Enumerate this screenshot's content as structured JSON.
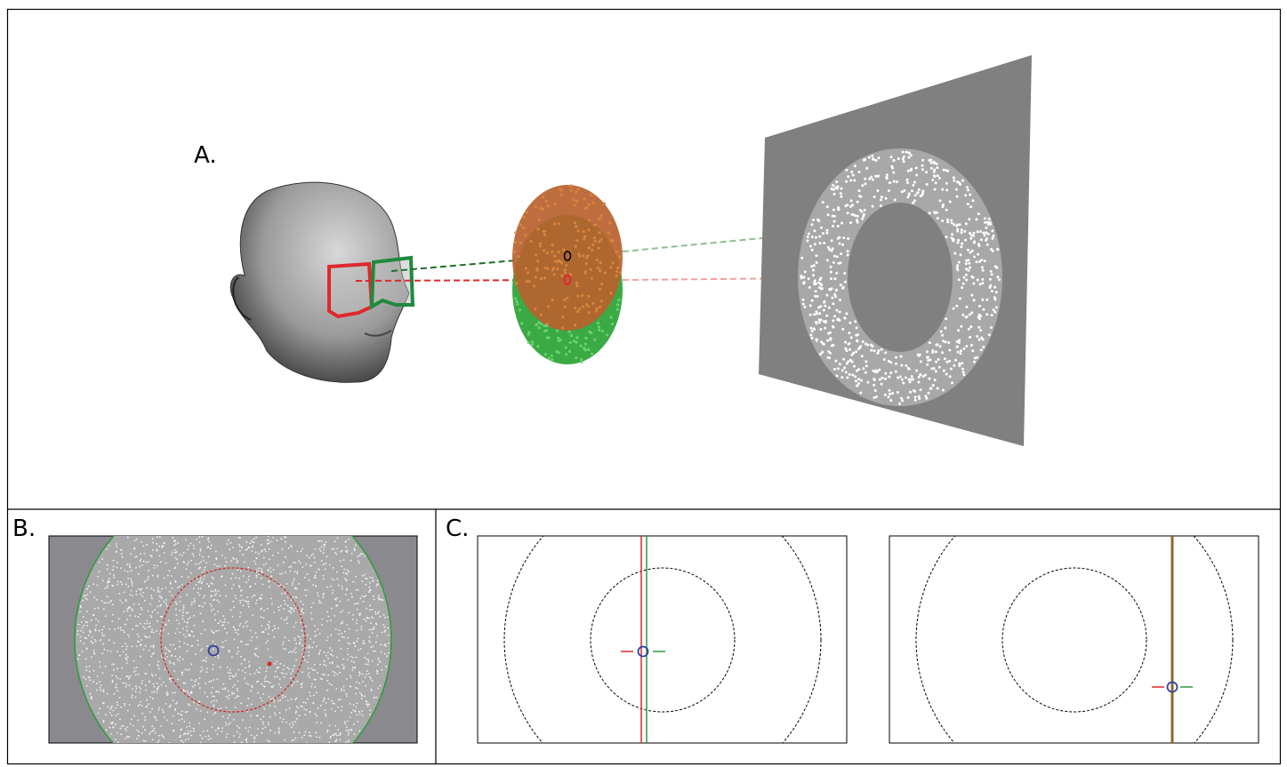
{
  "panels": [
    {
      "label": "A."
    },
    {
      "label": "B."
    },
    {
      "label": "C."
    }
  ]
}
